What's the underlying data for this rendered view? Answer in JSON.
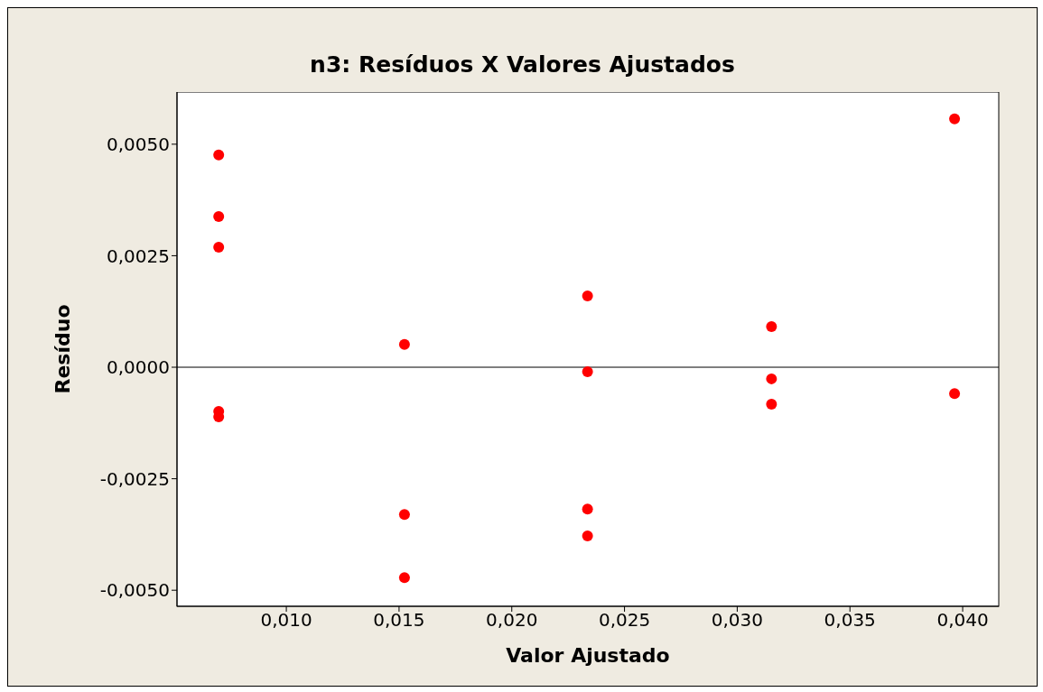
{
  "chart_data": {
    "type": "scatter",
    "title": "n3: Resíduos X Valores Ajustados",
    "xlabel": "Valor Ajustado",
    "ylabel": "Resíduo",
    "series": [
      {
        "color": "#ff0000",
        "x": [
          0.007,
          0.007,
          0.007,
          0.007,
          0.007,
          0.01524,
          0.01524,
          0.01524,
          0.02336,
          0.02336,
          0.02336,
          0.02336,
          0.03152,
          0.03152,
          0.03152,
          0.03964,
          0.03964
        ],
        "values": [
          0.00476,
          0.00338,
          0.00269,
          -0.00099,
          -0.00111,
          0.00051,
          -0.0033,
          -0.00472,
          0.0016,
          -0.0001,
          -0.00318,
          -0.00378,
          0.00091,
          -0.00026,
          -0.00083,
          0.00557,
          -0.00059
        ]
      }
    ],
    "xlim": [
      0.00515,
      0.0416
    ],
    "ylim": [
      -0.00536,
      0.00617
    ],
    "xticks": [
      {
        "value": 0.01,
        "label": "0,010"
      },
      {
        "value": 0.015,
        "label": "0,015"
      },
      {
        "value": 0.02,
        "label": "0,020"
      },
      {
        "value": 0.025,
        "label": "0,025"
      },
      {
        "value": 0.03,
        "label": "0,030"
      },
      {
        "value": 0.035,
        "label": "0,035"
      },
      {
        "value": 0.04,
        "label": "0,040"
      }
    ],
    "yticks": [
      {
        "value": -0.005,
        "label": "-0,0050"
      },
      {
        "value": -0.0025,
        "label": "-0,0025"
      },
      {
        "value": 0,
        "label": "0,0000"
      },
      {
        "value": 0.0025,
        "label": "0,0025"
      },
      {
        "value": 0.005,
        "label": "0,0050"
      }
    ],
    "ref_lines": [
      {
        "axis": "y",
        "value": 0,
        "color": "#000000"
      }
    ],
    "legend": false,
    "marker": "circle"
  }
}
